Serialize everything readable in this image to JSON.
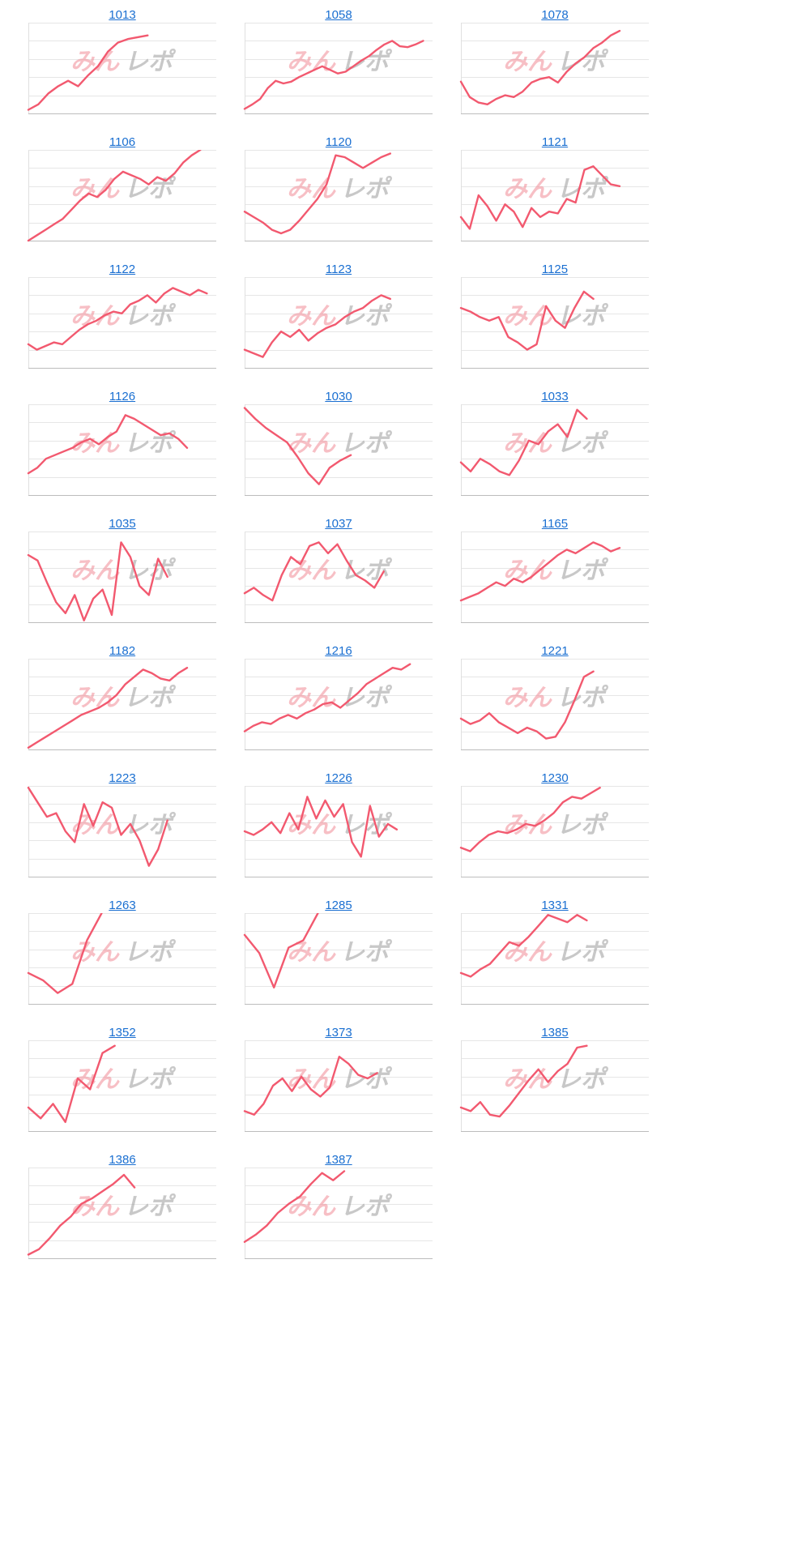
{
  "page": {
    "charts": [
      {
        "title": "1013",
        "line_color": "#f2596f",
        "watermark": {
          "part1": "みん",
          "part2": "レポ"
        },
        "chart_data": {
          "type": "line",
          "grid": true,
          "legend": "none",
          "y": [
            0.04,
            0.1,
            0.22,
            0.3,
            0.36,
            0.3,
            0.42,
            0.52,
            0.68,
            0.78,
            0.82,
            0.84,
            0.86
          ]
        }
      },
      {
        "title": "1058",
        "line_color": "#f2596f",
        "watermark": {
          "part1": "みん",
          "part2": "レポ"
        },
        "chart_data": {
          "type": "line",
          "grid": true,
          "legend": "none",
          "y": [
            0.05,
            0.1,
            0.16,
            0.28,
            0.36,
            0.33,
            0.35,
            0.4,
            0.44,
            0.48,
            0.52,
            0.48,
            0.44,
            0.46,
            0.52,
            0.58,
            0.63,
            0.7,
            0.76,
            0.8,
            0.74,
            0.73,
            0.76,
            0.8
          ]
        }
      },
      {
        "title": "1078",
        "line_color": "#f2596f",
        "watermark": {
          "part1": "みん",
          "part2": "レポ"
        },
        "chart_data": {
          "type": "line",
          "grid": true,
          "legend": "none",
          "y": [
            0.35,
            0.18,
            0.12,
            0.1,
            0.16,
            0.2,
            0.18,
            0.24,
            0.34,
            0.38,
            0.4,
            0.34,
            0.46,
            0.55,
            0.62,
            0.72,
            0.78,
            0.86,
            0.91
          ]
        }
      },
      {
        "title": "1106",
        "line_color": "#f2596f",
        "watermark": {
          "part1": "みん",
          "part2": "レポ"
        },
        "chart_data": {
          "type": "line",
          "grid": true,
          "legend": "none",
          "y": [
            0.0,
            0.06,
            0.12,
            0.18,
            0.24,
            0.34,
            0.44,
            0.52,
            0.48,
            0.56,
            0.68,
            0.76,
            0.72,
            0.68,
            0.62,
            0.7,
            0.66,
            0.74,
            0.86,
            0.94,
            1.0
          ]
        }
      },
      {
        "title": "1120",
        "line_color": "#f2596f",
        "watermark": {
          "part1": "みん",
          "part2": "レポ"
        },
        "chart_data": {
          "type": "line",
          "grid": true,
          "legend": "none",
          "y": [
            0.32,
            0.26,
            0.2,
            0.12,
            0.08,
            0.12,
            0.22,
            0.34,
            0.46,
            0.62,
            0.94,
            0.92,
            0.86,
            0.8,
            0.86,
            0.92,
            0.96
          ]
        }
      },
      {
        "title": "1121",
        "line_color": "#f2596f",
        "watermark": {
          "part1": "みん",
          "part2": "レポ"
        },
        "chart_data": {
          "type": "line",
          "grid": true,
          "legend": "none",
          "y": [
            0.26,
            0.13,
            0.5,
            0.38,
            0.22,
            0.4,
            0.32,
            0.15,
            0.36,
            0.26,
            0.32,
            0.3,
            0.46,
            0.42,
            0.78,
            0.82,
            0.72,
            0.62,
            0.6
          ]
        }
      },
      {
        "title": "1122",
        "line_color": "#f2596f",
        "watermark": {
          "part1": "みん",
          "part2": "レポ"
        },
        "chart_data": {
          "type": "line",
          "grid": true,
          "legend": "none",
          "y": [
            0.26,
            0.2,
            0.24,
            0.28,
            0.26,
            0.34,
            0.42,
            0.48,
            0.52,
            0.58,
            0.62,
            0.6,
            0.7,
            0.74,
            0.8,
            0.72,
            0.82,
            0.88,
            0.84,
            0.8,
            0.86,
            0.82
          ]
        }
      },
      {
        "title": "1123",
        "line_color": "#f2596f",
        "watermark": {
          "part1": "みん",
          "part2": "レポ"
        },
        "chart_data": {
          "type": "line",
          "grid": true,
          "legend": "none",
          "y": [
            0.2,
            0.16,
            0.12,
            0.28,
            0.4,
            0.34,
            0.42,
            0.3,
            0.38,
            0.44,
            0.48,
            0.56,
            0.62,
            0.66,
            0.74,
            0.8,
            0.76
          ]
        }
      },
      {
        "title": "1125",
        "line_color": "#f2596f",
        "watermark": {
          "part1": "みん",
          "part2": "レポ"
        },
        "chart_data": {
          "type": "line",
          "grid": true,
          "legend": "none",
          "y": [
            0.66,
            0.62,
            0.56,
            0.52,
            0.56,
            0.34,
            0.28,
            0.2,
            0.26,
            0.68,
            0.52,
            0.44,
            0.66,
            0.84,
            0.76
          ]
        }
      },
      {
        "title": "1126",
        "line_color": "#f2596f",
        "watermark": {
          "part1": "みん",
          "part2": "レポ"
        },
        "chart_data": {
          "type": "line",
          "grid": true,
          "legend": "none",
          "y": [
            0.24,
            0.3,
            0.4,
            0.44,
            0.48,
            0.52,
            0.58,
            0.62,
            0.56,
            0.64,
            0.7,
            0.88,
            0.84,
            0.78,
            0.72,
            0.66,
            0.68,
            0.62,
            0.52
          ]
        }
      },
      {
        "title": "1030",
        "line_color": "#f2596f",
        "watermark": {
          "part1": "みん",
          "part2": "レポ"
        },
        "chart_data": {
          "type": "line",
          "grid": true,
          "legend": "none",
          "y": [
            0.96,
            0.84,
            0.74,
            0.66,
            0.58,
            0.42,
            0.24,
            0.12,
            0.3,
            0.38,
            0.44
          ]
        }
      },
      {
        "title": "1033",
        "line_color": "#f2596f",
        "watermark": {
          "part1": "みん",
          "part2": "レポ"
        },
        "chart_data": {
          "type": "line",
          "grid": true,
          "legend": "none",
          "y": [
            0.36,
            0.26,
            0.4,
            0.34,
            0.26,
            0.22,
            0.38,
            0.6,
            0.56,
            0.7,
            0.78,
            0.64,
            0.94,
            0.84
          ]
        }
      },
      {
        "title": "1035",
        "line_color": "#f2596f",
        "watermark": {
          "part1": "みん",
          "part2": "レポ"
        },
        "chart_data": {
          "type": "line",
          "grid": true,
          "legend": "none",
          "y": [
            0.74,
            0.68,
            0.44,
            0.22,
            0.1,
            0.3,
            0.02,
            0.26,
            0.36,
            0.08,
            0.88,
            0.72,
            0.4,
            0.3,
            0.7,
            0.5
          ]
        }
      },
      {
        "title": "1037",
        "line_color": "#f2596f",
        "watermark": {
          "part1": "みん",
          "part2": "レポ"
        },
        "chart_data": {
          "type": "line",
          "grid": true,
          "legend": "none",
          "y": [
            0.32,
            0.38,
            0.3,
            0.24,
            0.52,
            0.72,
            0.64,
            0.84,
            0.88,
            0.76,
            0.86,
            0.68,
            0.52,
            0.46,
            0.38,
            0.56
          ]
        }
      },
      {
        "title": "1165",
        "line_color": "#f2596f",
        "watermark": {
          "part1": "みん",
          "part2": "レポ"
        },
        "chart_data": {
          "type": "line",
          "grid": true,
          "legend": "none",
          "y": [
            0.24,
            0.28,
            0.32,
            0.38,
            0.44,
            0.4,
            0.48,
            0.44,
            0.5,
            0.58,
            0.66,
            0.74,
            0.8,
            0.76,
            0.82,
            0.88,
            0.84,
            0.78,
            0.82
          ]
        }
      },
      {
        "title": "1182",
        "line_color": "#f2596f",
        "watermark": {
          "part1": "みん",
          "part2": "レポ"
        },
        "chart_data": {
          "type": "line",
          "grid": true,
          "legend": "none",
          "y": [
            0.02,
            0.08,
            0.14,
            0.2,
            0.26,
            0.32,
            0.38,
            0.42,
            0.46,
            0.52,
            0.6,
            0.72,
            0.8,
            0.88,
            0.84,
            0.78,
            0.76,
            0.84,
            0.9
          ]
        }
      },
      {
        "title": "1216",
        "line_color": "#f2596f",
        "watermark": {
          "part1": "みん",
          "part2": "レポ"
        },
        "chart_data": {
          "type": "line",
          "grid": true,
          "legend": "none",
          "y": [
            0.2,
            0.26,
            0.3,
            0.28,
            0.34,
            0.38,
            0.34,
            0.4,
            0.44,
            0.5,
            0.52,
            0.46,
            0.54,
            0.62,
            0.72,
            0.78,
            0.84,
            0.9,
            0.88,
            0.94
          ]
        }
      },
      {
        "title": "1221",
        "line_color": "#f2596f",
        "watermark": {
          "part1": "みん",
          "part2": "レポ"
        },
        "chart_data": {
          "type": "line",
          "grid": true,
          "legend": "none",
          "y": [
            0.34,
            0.28,
            0.32,
            0.4,
            0.3,
            0.24,
            0.18,
            0.24,
            0.2,
            0.12,
            0.14,
            0.3,
            0.54,
            0.8,
            0.86
          ]
        }
      },
      {
        "title": "1223",
        "line_color": "#f2596f",
        "watermark": {
          "part1": "みん",
          "part2": "レポ"
        },
        "chart_data": {
          "type": "line",
          "grid": true,
          "legend": "none",
          "y": [
            0.98,
            0.82,
            0.66,
            0.7,
            0.5,
            0.38,
            0.8,
            0.56,
            0.82,
            0.76,
            0.46,
            0.58,
            0.4,
            0.12,
            0.3,
            0.62
          ]
        }
      },
      {
        "title": "1226",
        "line_color": "#f2596f",
        "watermark": {
          "part1": "みん",
          "part2": "レポ"
        },
        "chart_data": {
          "type": "line",
          "grid": true,
          "legend": "none",
          "y": [
            0.5,
            0.46,
            0.52,
            0.6,
            0.48,
            0.7,
            0.52,
            0.88,
            0.64,
            0.84,
            0.66,
            0.8,
            0.38,
            0.22,
            0.78,
            0.44,
            0.58,
            0.52
          ]
        }
      },
      {
        "title": "1230",
        "line_color": "#f2596f",
        "watermark": {
          "part1": "みん",
          "part2": "レポ"
        },
        "chart_data": {
          "type": "line",
          "grid": true,
          "legend": "none",
          "y": [
            0.32,
            0.28,
            0.38,
            0.46,
            0.5,
            0.48,
            0.52,
            0.58,
            0.56,
            0.62,
            0.7,
            0.82,
            0.88,
            0.86,
            0.92,
            0.98
          ]
        }
      },
      {
        "title": "1263",
        "line_color": "#f2596f",
        "watermark": {
          "part1": "みん",
          "part2": "レポ"
        },
        "chart_data": {
          "type": "line",
          "grid": true,
          "legend": "none",
          "y": [
            0.34,
            0.26,
            0.12,
            0.22,
            0.7,
            1.0
          ]
        }
      },
      {
        "title": "1285",
        "line_color": "#f2596f",
        "watermark": {
          "part1": "みん",
          "part2": "レポ"
        },
        "chart_data": {
          "type": "line",
          "grid": true,
          "legend": "none",
          "y": [
            0.76,
            0.56,
            0.18,
            0.62,
            0.7,
            1.0
          ]
        }
      },
      {
        "title": "1331",
        "line_color": "#f2596f",
        "watermark": {
          "part1": "みん",
          "part2": "レポ"
        },
        "chart_data": {
          "type": "line",
          "grid": true,
          "legend": "none",
          "y": [
            0.34,
            0.3,
            0.38,
            0.44,
            0.56,
            0.68,
            0.64,
            0.74,
            0.86,
            0.98,
            0.94,
            0.9,
            0.98,
            0.92
          ]
        }
      },
      {
        "title": "1352",
        "line_color": "#f2596f",
        "watermark": {
          "part1": "みん",
          "part2": "レポ"
        },
        "chart_data": {
          "type": "line",
          "grid": true,
          "legend": "none",
          "y": [
            0.26,
            0.14,
            0.3,
            0.1,
            0.58,
            0.46,
            0.86,
            0.94
          ]
        }
      },
      {
        "title": "1373",
        "line_color": "#f2596f",
        "watermark": {
          "part1": "みん",
          "part2": "レポ"
        },
        "chart_data": {
          "type": "line",
          "grid": true,
          "legend": "none",
          "y": [
            0.22,
            0.18,
            0.3,
            0.5,
            0.58,
            0.44,
            0.6,
            0.46,
            0.38,
            0.48,
            0.82,
            0.74,
            0.62,
            0.58,
            0.64
          ]
        }
      },
      {
        "title": "1385",
        "line_color": "#f2596f",
        "watermark": {
          "part1": "みん",
          "part2": "レポ"
        },
        "chart_data": {
          "type": "line",
          "grid": true,
          "legend": "none",
          "y": [
            0.26,
            0.22,
            0.32,
            0.18,
            0.16,
            0.28,
            0.42,
            0.56,
            0.68,
            0.54,
            0.66,
            0.74,
            0.92,
            0.94
          ]
        }
      },
      {
        "title": "1386",
        "line_color": "#f2596f",
        "watermark": {
          "part1": "みん",
          "part2": "レポ"
        },
        "chart_data": {
          "type": "line",
          "grid": true,
          "legend": "none",
          "y": [
            0.04,
            0.1,
            0.22,
            0.36,
            0.46,
            0.6,
            0.66,
            0.74,
            0.82,
            0.92,
            0.78
          ]
        }
      },
      {
        "title": "1387",
        "line_color": "#f2596f",
        "watermark": {
          "part1": "みん",
          "part2": "レポ"
        },
        "chart_data": {
          "type": "line",
          "grid": true,
          "legend": "none",
          "y": [
            0.18,
            0.26,
            0.36,
            0.5,
            0.6,
            0.68,
            0.82,
            0.94,
            0.86,
            0.96
          ]
        }
      }
    ]
  }
}
